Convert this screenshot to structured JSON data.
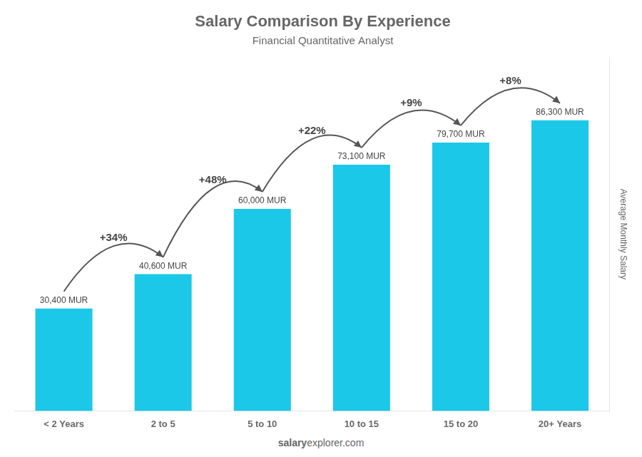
{
  "chart_data": {
    "type": "bar",
    "title": "Salary Comparison By Experience",
    "subtitle": "Financial Quantitative Analyst",
    "y_label": "Average Monthly Salary",
    "footer": [
      "salary",
      "explorer.com"
    ],
    "categories": [
      "< 2 Years",
      "2 to 5",
      "5 to 10",
      "10 to 15",
      "15 to 20",
      "20+ Years"
    ],
    "values": [
      30400,
      40600,
      60000,
      73100,
      79700,
      86300
    ],
    "value_labels": [
      "30,400 MUR",
      "40,600 MUR",
      "60,000 MUR",
      "73,100 MUR",
      "79,700 MUR",
      "86,300 MUR"
    ],
    "data_labels": true,
    "annotations": [
      {
        "text": "+34%",
        "from": "< 2 Years",
        "to": "2 to 5"
      },
      {
        "text": "+48%",
        "from": "2 to 5",
        "to": "5 to 10"
      },
      {
        "text": "+22%",
        "from": "5 to 10",
        "to": "10 to 15"
      },
      {
        "text": "+9%",
        "from": "10 to 15",
        "to": "15 to 20"
      },
      {
        "text": "+8%",
        "from": "15 to 20",
        "to": "20+ Years"
      }
    ],
    "color": "#1BC8E8",
    "ylim": [
      0,
      105000
    ],
    "grid": false,
    "tick_labels": "x"
  }
}
